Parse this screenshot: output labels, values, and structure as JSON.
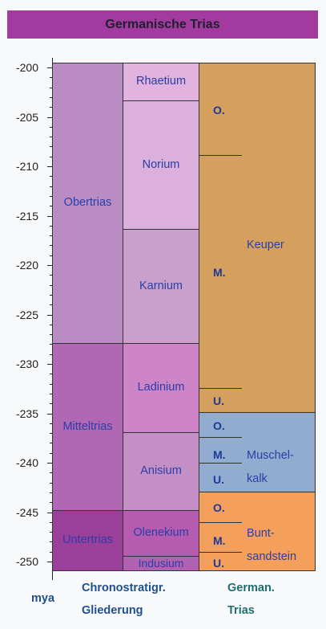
{
  "title": "Germanische Trias",
  "axis": {
    "unit": "mya",
    "labels": [
      "-200",
      "-205",
      "-210",
      "-215",
      "-220",
      "-225",
      "-230",
      "-235",
      "-240",
      "-245",
      "-250"
    ]
  },
  "series": {
    "stufen": {
      "name": "Obertrias",
      "mittel": "Mitteltrias",
      "unter": "Untertrias"
    },
    "stages": {
      "rhaetium": "Rhaetium",
      "norium": "Norium",
      "karnium": "Karnium",
      "ladinium": "Ladinium",
      "anisium": "Anisium",
      "olenekium": "Olenekium",
      "indusium": "Indusium"
    },
    "groups": {
      "keuper": "Keuper",
      "muschelkalk": "Muschel-\nkalk",
      "buntsandstein": "Bunt-\nsandstein"
    },
    "subdivisions": {
      "upper": "O.",
      "middle": "M.",
      "lower": "U."
    }
  },
  "footer": {
    "mya": "mya",
    "chrono": "Chronostratigr.\nGliederung",
    "german": "German.\nTrias"
  },
  "colors": {
    "obertrias": "#ba8cc4",
    "mitteltrias": "#b067b4",
    "untertrias": "#9a3f9a",
    "rhaetium": "#e1b3de",
    "norium": "#dcb0dc",
    "karnium": "#c9a0cc",
    "ladinium": "#cd85c8",
    "anisium": "#c38fc5",
    "olenekium": "#b55bb0",
    "indusium": "#b062b0",
    "keuper": "#d5a05e",
    "muschelkalk": "#92accf",
    "buntsandstein": "#f4a05c",
    "title_bg": "#a33aa0",
    "footer_blue": "#1f4f8f",
    "footer_teal": "#1f6f6f"
  }
}
